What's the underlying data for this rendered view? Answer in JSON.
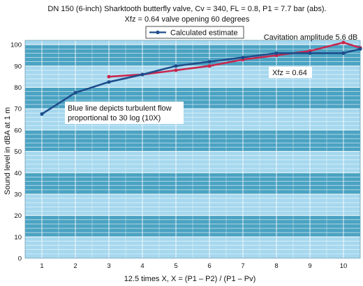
{
  "chart_data": {
    "type": "line",
    "title": "DN 150 (6-inch) Sharktooth butterfly valve, Cv = 340, FL = 0.8, P1 = 7.7 bar (abs).",
    "subtitle": "Xfz = 0.64 valve opening 60 degrees",
    "xlabel": "12.5 times X, X = (P1 – P2) / (P1 – Pv)",
    "ylabel": "Sound level in dBA at 1 m",
    "xlim": [
      0.5,
      10.5
    ],
    "ylim": [
      0,
      102
    ],
    "x_ticks": [
      1,
      2,
      3,
      4,
      5,
      6,
      7,
      8,
      9,
      10
    ],
    "y_ticks": [
      0,
      10,
      20,
      30,
      40,
      50,
      60,
      70,
      80,
      90,
      100
    ],
    "legend": {
      "position": "top-center",
      "label": "Calculated estimate"
    },
    "series": [
      {
        "name": "Calculated estimate",
        "color": "#1f4e8c",
        "x": [
          1,
          2,
          3,
          4,
          5,
          6,
          7,
          8,
          9,
          10,
          10.5
        ],
        "y": [
          67.5,
          77.5,
          82.5,
          86,
          90,
          92,
          94,
          96,
          96,
          96,
          98
        ]
      },
      {
        "color": "#c8274f",
        "x": [
          3,
          4,
          5,
          6,
          7,
          8,
          9,
          10,
          10.5
        ],
        "y": [
          85,
          86,
          88,
          90,
          93,
          95,
          97,
          101,
          98.5
        ]
      }
    ],
    "annotations": [
      {
        "text": "Cavitation amplitude 5.6 dB",
        "x": 9.3,
        "y": 104.5
      },
      {
        "text": "Xfz = 0.64",
        "x": 8.3,
        "y": 87.5
      },
      {
        "text": "Blue line depicts turbulent flow",
        "x": 2.8,
        "y": 70.5
      },
      {
        "text": "proportional to 30 log (10X)",
        "x": 2.8,
        "y": 66
      }
    ],
    "background": {
      "band_dark": "#4ba3c3",
      "band_light": "#a6d8ee",
      "grid": "#ffffff"
    }
  }
}
